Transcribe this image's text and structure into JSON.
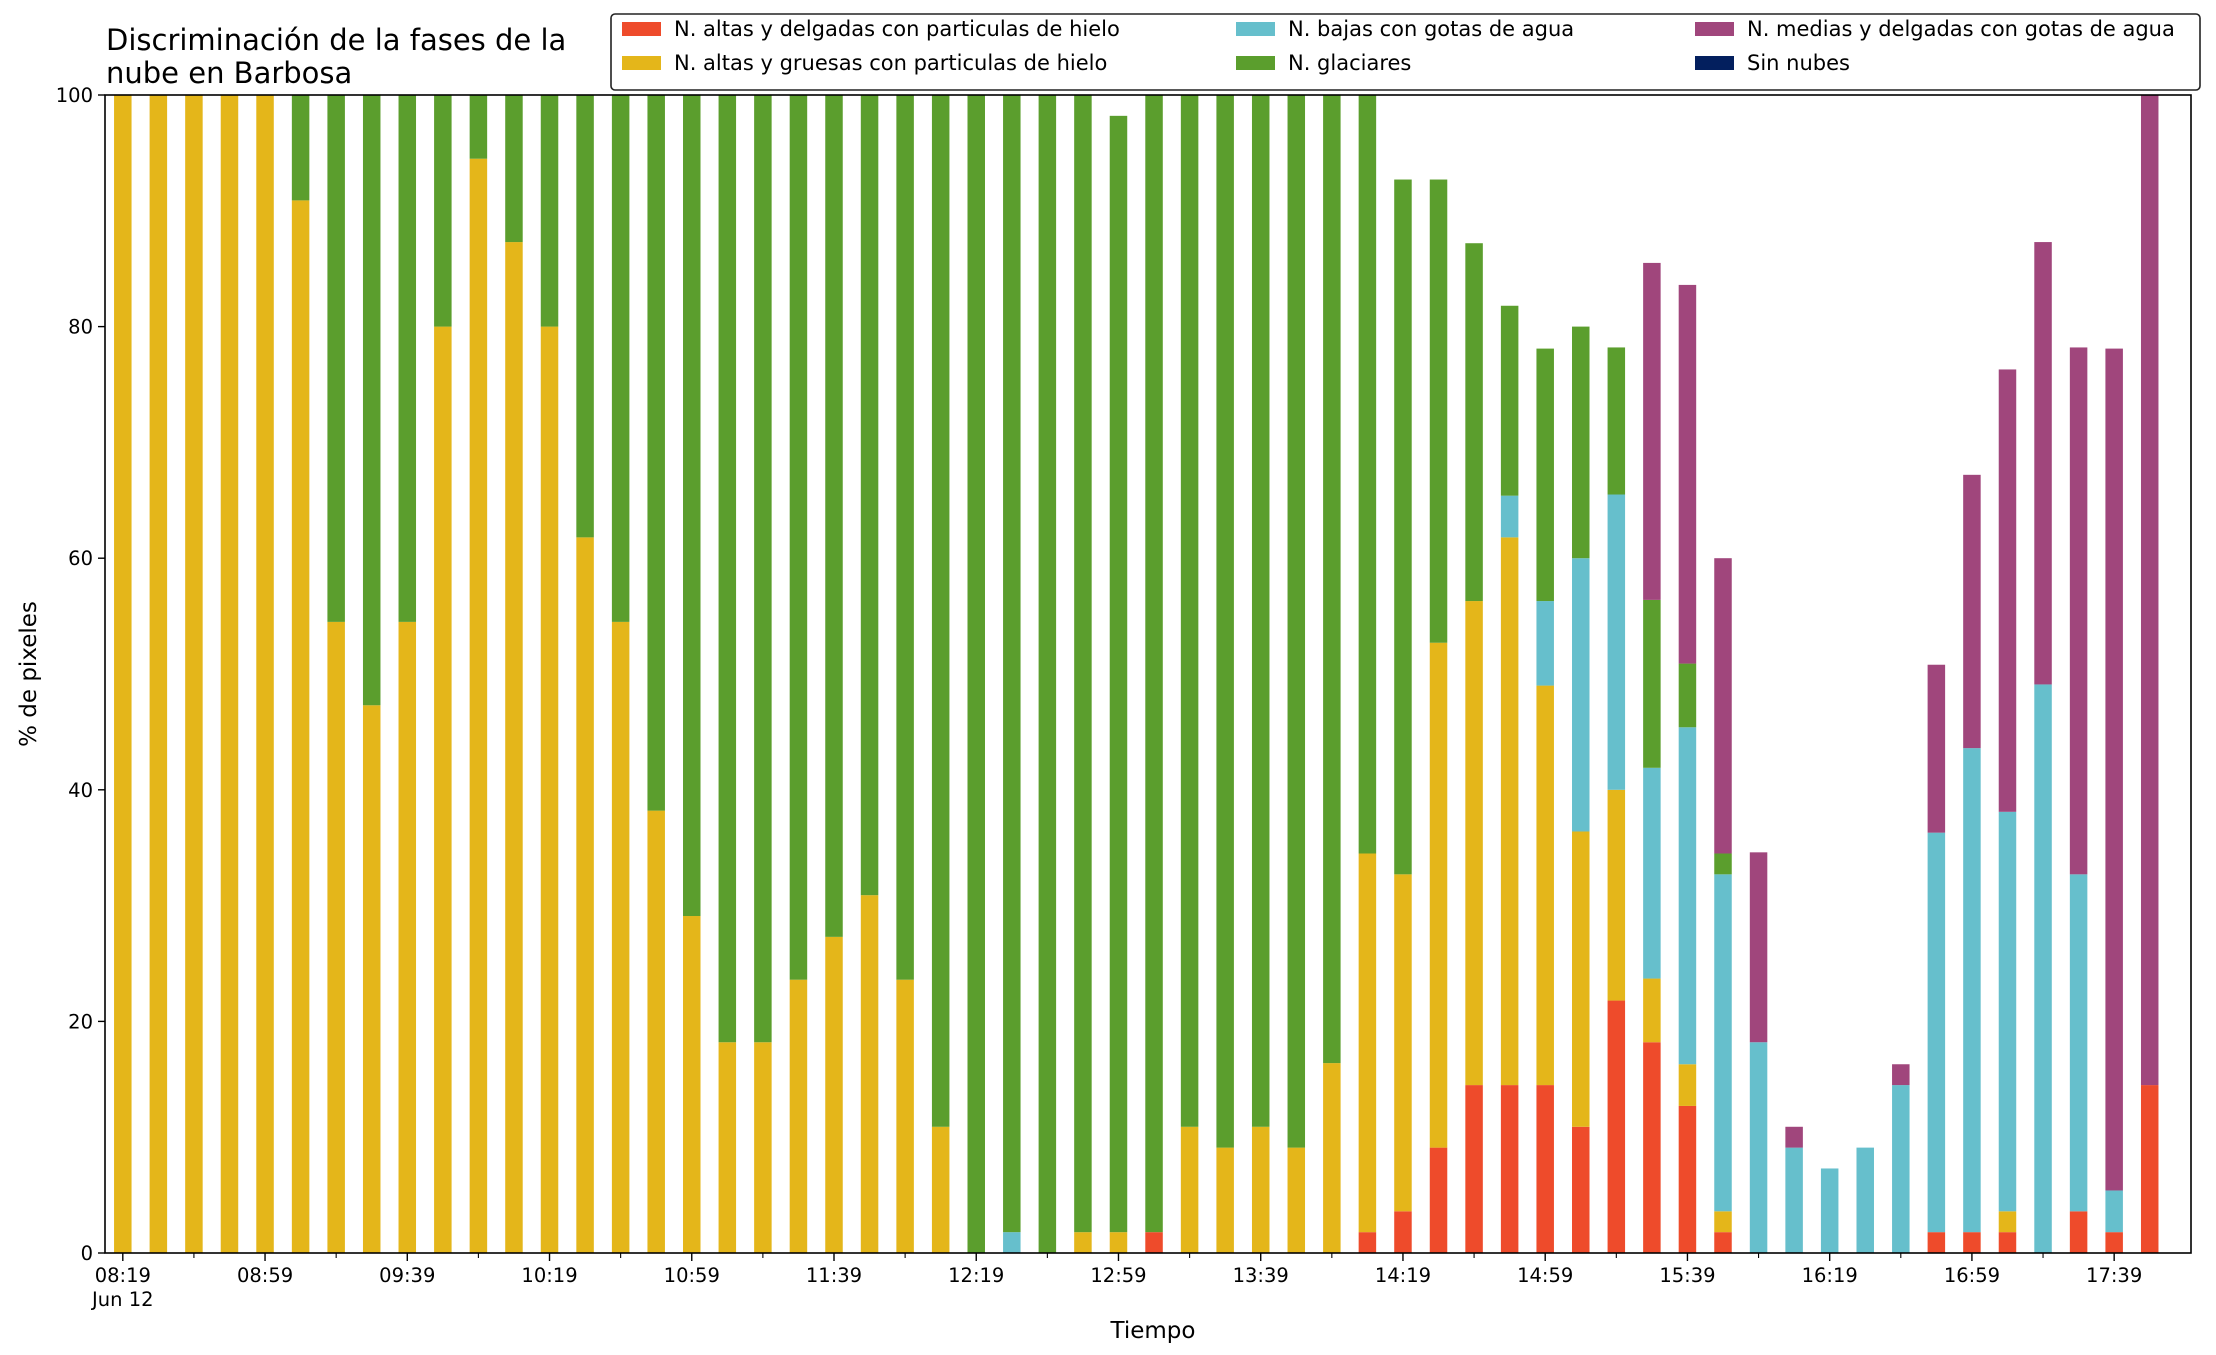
{
  "chart_data": {
    "type": "bar",
    "stacked": true,
    "title_lines": [
      "Discriminación de la fases de la",
      "nube en Barbosa"
    ],
    "xlabel": "Tiempo",
    "ylabel": "% de pixeles",
    "ylim": [
      0,
      100
    ],
    "yticks": [
      "0",
      "20",
      "40",
      "60",
      "80",
      "100"
    ],
    "xtick_labels": [
      "08:19",
      "08:59",
      "09:39",
      "10:19",
      "10:59",
      "11:39",
      "12:19",
      "12:59",
      "13:39",
      "14:19",
      "14:59",
      "15:39",
      "16:19",
      "16:59",
      "17:39"
    ],
    "xtick_sublabel": "Jun 12",
    "legend_position": "top-right",
    "grid": false,
    "series": [
      {
        "name": "N. altas y delgadas con particulas de hielo",
        "color": "#ee4b2b",
        "values": [
          0,
          0,
          0,
          0,
          0,
          0,
          0,
          0,
          0,
          0,
          0,
          0,
          0,
          0,
          0,
          0,
          0,
          0,
          0,
          0,
          0,
          0,
          0,
          0,
          0,
          0,
          0,
          0,
          0,
          1.8,
          0,
          0,
          0,
          0,
          0,
          1.8,
          3.6,
          9.1,
          14.5,
          14.5,
          14.5,
          10.9,
          21.8,
          18.2,
          12.7,
          1.8,
          0,
          0,
          0,
          0,
          0,
          1.8,
          1.8,
          1.8,
          0,
          3.6,
          1.8,
          14.5
        ]
      },
      {
        "name": "N. altas y gruesas con particulas de hielo",
        "color": "#e4b61a",
        "values": [
          100,
          100,
          100,
          100,
          100,
          90.9,
          54.5,
          47.3,
          54.5,
          80,
          94.5,
          87.3,
          80,
          61.8,
          54.5,
          38.2,
          29.1,
          18.2,
          18.2,
          23.6,
          27.3,
          30.9,
          23.6,
          10.9,
          0,
          0,
          0,
          1.8,
          1.8,
          0,
          10.9,
          9.1,
          10.9,
          9.1,
          16.4,
          32.7,
          29.1,
          43.6,
          41.8,
          47.3,
          34.5,
          25.5,
          18.2,
          5.5,
          3.6,
          1.8,
          0,
          0,
          0,
          0,
          0,
          0,
          0,
          1.8,
          0,
          0,
          0,
          0
        ]
      },
      {
        "name": "N. bajas con gotas de agua",
        "color": "#66bfcc",
        "values": [
          0,
          0,
          0,
          0,
          0,
          0,
          0,
          0,
          0,
          0,
          0,
          0,
          0,
          0,
          0,
          0,
          0,
          0,
          0,
          0,
          0,
          0,
          0,
          0,
          0,
          1.8,
          0,
          0,
          0,
          0,
          0,
          0,
          0,
          0,
          0,
          0,
          0,
          0,
          0,
          3.6,
          7.3,
          23.6,
          25.5,
          18.2,
          29.1,
          29.1,
          18.2,
          9.1,
          7.3,
          9.1,
          14.5,
          34.5,
          41.8,
          34.5,
          49.1,
          29.1,
          3.6,
          0
        ]
      },
      {
        "name": "N. glaciares",
        "color": "#5b9e2d",
        "values": [
          0,
          0,
          0,
          0,
          0,
          9.1,
          45.5,
          52.7,
          45.5,
          20,
          5.5,
          12.7,
          20,
          38.2,
          45.5,
          61.8,
          70.9,
          81.8,
          81.8,
          76.4,
          72.7,
          69.1,
          76.4,
          89.1,
          100,
          98.2,
          100,
          98.2,
          96.4,
          98.2,
          89.1,
          90.9,
          89.1,
          90.9,
          83.6,
          65.5,
          60,
          40,
          30.9,
          16.4,
          21.8,
          20,
          12.7,
          14.5,
          5.5,
          1.8,
          0,
          0,
          0,
          0,
          0,
          0,
          0,
          0,
          0,
          0,
          0,
          0
        ]
      },
      {
        "name": "N. medias y delgadas con gotas de agua",
        "color": "#a0467c",
        "values": [
          0,
          0,
          0,
          0,
          0,
          0,
          0,
          0,
          0,
          0,
          0,
          0,
          0,
          0,
          0,
          0,
          0,
          0,
          0,
          0,
          0,
          0,
          0,
          0,
          0,
          0,
          0,
          0,
          0,
          0,
          0,
          0,
          0,
          0,
          0,
          0,
          0,
          0,
          0,
          0,
          0,
          0,
          0,
          29.1,
          32.7,
          25.5,
          16.4,
          1.8,
          0,
          0,
          1.8,
          14.5,
          23.6,
          38.2,
          38.2,
          45.5,
          72.7,
          85.5
        ]
      },
      {
        "name": "Sin nubes",
        "color": "#031f5e",
        "values": [
          0,
          0,
          0,
          0,
          0,
          0,
          0,
          0,
          0,
          0,
          0,
          0,
          0,
          0,
          0,
          0,
          0,
          0,
          0,
          0,
          0,
          0,
          0,
          0,
          0,
          0,
          0,
          0,
          0,
          0,
          0,
          0,
          0,
          0,
          0,
          0,
          0,
          0,
          0,
          0,
          0,
          0,
          0,
          0,
          0,
          0,
          0,
          0,
          0,
          0,
          0,
          0,
          0,
          0,
          0,
          0,
          0,
          0
        ]
      }
    ]
  }
}
